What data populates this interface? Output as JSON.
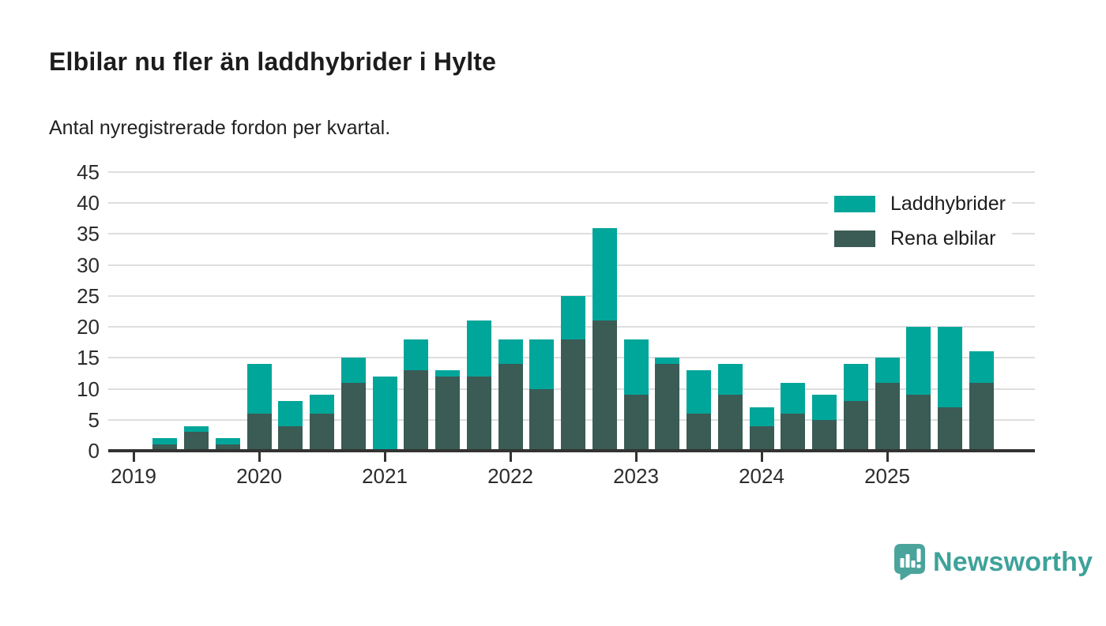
{
  "header": {
    "title": "Elbilar nu fler än laddhybrider i Hylte",
    "subtitle": "Antal nyregistrerade fordon per kvartal."
  },
  "legend": {
    "items": [
      {
        "label": "Laddhybrider",
        "color": "#00a69a"
      },
      {
        "label": "Rena elbilar",
        "color": "#3b5b55"
      }
    ]
  },
  "footer": {
    "brand": "Newsworthy",
    "logo_icon": "speech-bubble-bar-chart-icon",
    "brand_color": "#3ea29a",
    "icon_color": "#4aa49c"
  },
  "colors": {
    "laddhybrider": "#00a69a",
    "rena_elbilar": "#3b5b55",
    "axis": "#333333",
    "grid": "#dedede",
    "text": "#2c2c2c",
    "title": "#1c1c1c"
  },
  "chart_data": {
    "type": "bar",
    "stacked": true,
    "title": "Elbilar nu fler än laddhybrider i Hylte",
    "subtitle": "Antal nyregistrerade fordon per kvartal.",
    "xlabel": "",
    "ylabel": "",
    "ylim": [
      0,
      45
    ],
    "y_ticks": [
      0,
      5,
      10,
      15,
      20,
      25,
      30,
      35,
      40,
      45
    ],
    "grid": true,
    "legend_position": "top-right",
    "x_year_ticks": [
      "2019",
      "2020",
      "2021",
      "2022",
      "2023",
      "2024",
      "2025"
    ],
    "categories": [
      "2019 Q1",
      "2019 Q2",
      "2019 Q3",
      "2019 Q4",
      "2020 Q1",
      "2020 Q2",
      "2020 Q3",
      "2020 Q4",
      "2021 Q1",
      "2021 Q2",
      "2021 Q3",
      "2021 Q4",
      "2022 Q1",
      "2022 Q2",
      "2022 Q3",
      "2022 Q4",
      "2023 Q1",
      "2023 Q2",
      "2023 Q3",
      "2023 Q4",
      "2024 Q1",
      "2024 Q2",
      "2024 Q3",
      "2024 Q4",
      "2025 Q1",
      "2025 Q2",
      "2025 Q3",
      "2025 Q4"
    ],
    "series": [
      {
        "name": "Rena elbilar",
        "color": "#3b5b55",
        "stack_order": "bottom",
        "values": [
          0,
          1,
          3,
          1,
          6,
          4,
          6,
          11,
          0,
          13,
          12,
          12,
          14,
          10,
          18,
          21,
          9,
          14,
          6,
          9,
          4,
          6,
          5,
          8,
          11,
          9,
          7,
          11
        ]
      },
      {
        "name": "Laddhybrider",
        "color": "#00a69a",
        "stack_order": "top",
        "values": [
          0,
          1,
          1,
          1,
          8,
          4,
          3,
          4,
          12,
          5,
          1,
          9,
          4,
          8,
          7,
          15,
          9,
          1,
          7,
          5,
          3,
          5,
          4,
          6,
          4,
          11,
          13,
          5
        ]
      }
    ],
    "totals": [
      0,
      2,
      4,
      2,
      14,
      8,
      9,
      15,
      12,
      18,
      13,
      21,
      18,
      18,
      25,
      36,
      18,
      15,
      13,
      14,
      7,
      11,
      9,
      14,
      15,
      20,
      20,
      16
    ]
  }
}
